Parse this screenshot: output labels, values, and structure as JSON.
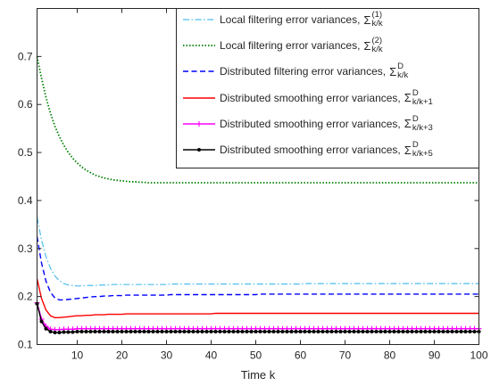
{
  "chart_data": {
    "type": "line",
    "xlabel": "Time k",
    "xlim": [
      1,
      100
    ],
    "ylim": [
      0.1,
      0.8
    ],
    "xticks": [
      10,
      20,
      30,
      40,
      50,
      60,
      70,
      80,
      90,
      100
    ],
    "yticks": [
      0.1,
      0.2,
      0.3,
      0.4,
      0.5,
      0.6,
      0.7
    ],
    "grid": false,
    "legend_position": "top-right",
    "x": [
      1,
      2,
      3,
      4,
      5,
      6,
      7,
      8,
      9,
      10,
      11,
      12,
      13,
      14,
      15,
      16,
      17,
      18,
      19,
      20,
      21,
      22,
      23,
      24,
      25,
      26,
      27,
      28,
      29,
      30,
      31,
      32,
      33,
      34,
      35,
      36,
      37,
      38,
      39,
      40,
      41,
      42,
      43,
      44,
      45,
      46,
      47,
      48,
      49,
      50,
      51,
      52,
      53,
      54,
      55,
      56,
      57,
      58,
      59,
      60,
      61,
      62,
      63,
      64,
      65,
      66,
      67,
      68,
      69,
      70,
      71,
      72,
      73,
      74,
      75,
      76,
      77,
      78,
      79,
      80,
      81,
      82,
      83,
      84,
      85,
      86,
      87,
      88,
      89,
      90,
      91,
      92,
      93,
      94,
      95,
      96,
      97,
      98,
      99,
      100
    ],
    "series": [
      {
        "name": "Local filtering error variances,",
        "symbol": "Σ",
        "sup": "(1)",
        "sub": "k/k",
        "color": "#4DBEEE",
        "line_style": "dash-dot",
        "marker": "none",
        "values": [
          0.365,
          0.318,
          0.283,
          0.259,
          0.243,
          0.233,
          0.227,
          0.224,
          0.223,
          0.222,
          0.222,
          0.223,
          0.223,
          0.223,
          0.224,
          0.224,
          0.224,
          0.225,
          0.225,
          0.225,
          0.225,
          0.225,
          0.225,
          0.225,
          0.225,
          0.225,
          0.225,
          0.225,
          0.225,
          0.225,
          0.226,
          0.226,
          0.226,
          0.226,
          0.226,
          0.226,
          0.226,
          0.226,
          0.226,
          0.226,
          0.226,
          0.226,
          0.226,
          0.226,
          0.226,
          0.226,
          0.226,
          0.226,
          0.226,
          0.226,
          0.226,
          0.226,
          0.226,
          0.226,
          0.226,
          0.226,
          0.226,
          0.226,
          0.226,
          0.226,
          0.227,
          0.227,
          0.227,
          0.227,
          0.227,
          0.227,
          0.227,
          0.227,
          0.227,
          0.227,
          0.227,
          0.227,
          0.227,
          0.227,
          0.227,
          0.227,
          0.227,
          0.227,
          0.227,
          0.227,
          0.227,
          0.227,
          0.227,
          0.227,
          0.227,
          0.227,
          0.227,
          0.227,
          0.227,
          0.227,
          0.227,
          0.227,
          0.227,
          0.227,
          0.227,
          0.227,
          0.227,
          0.227,
          0.227,
          0.227
        ]
      },
      {
        "name": "Local filtering error variances,",
        "symbol": "Σ",
        "sup": "(2)",
        "sub": "k/k",
        "color": "#008000",
        "line_style": "dotted",
        "marker": "none",
        "values": [
          0.7,
          0.655,
          0.615,
          0.582,
          0.555,
          0.533,
          0.515,
          0.5,
          0.488,
          0.478,
          0.47,
          0.463,
          0.458,
          0.453,
          0.45,
          0.447,
          0.445,
          0.443,
          0.442,
          0.441,
          0.44,
          0.439,
          0.439,
          0.438,
          0.438,
          0.437,
          0.437,
          0.437,
          0.437,
          0.437,
          0.437,
          0.437,
          0.437,
          0.437,
          0.437,
          0.437,
          0.437,
          0.437,
          0.437,
          0.437,
          0.437,
          0.437,
          0.437,
          0.437,
          0.437,
          0.437,
          0.437,
          0.437,
          0.437,
          0.437,
          0.437,
          0.437,
          0.437,
          0.437,
          0.437,
          0.437,
          0.437,
          0.437,
          0.437,
          0.437,
          0.437,
          0.437,
          0.437,
          0.437,
          0.437,
          0.437,
          0.437,
          0.437,
          0.437,
          0.437,
          0.437,
          0.437,
          0.437,
          0.437,
          0.437,
          0.437,
          0.437,
          0.437,
          0.437,
          0.437,
          0.437,
          0.437,
          0.437,
          0.437,
          0.437,
          0.437,
          0.437,
          0.437,
          0.437,
          0.437,
          0.437,
          0.437,
          0.437,
          0.437,
          0.437,
          0.437,
          0.437,
          0.437,
          0.437,
          0.437
        ]
      },
      {
        "name": "Distributed filtering error variances,",
        "symbol": "Σ",
        "sup": "D",
        "sub": "k/k",
        "color": "#0000FF",
        "line_style": "dashed",
        "marker": "none",
        "values": [
          0.325,
          0.27,
          0.232,
          0.209,
          0.197,
          0.193,
          0.193,
          0.194,
          0.195,
          0.196,
          0.197,
          0.198,
          0.199,
          0.2,
          0.2,
          0.201,
          0.201,
          0.202,
          0.202,
          0.202,
          0.203,
          0.203,
          0.203,
          0.203,
          0.203,
          0.203,
          0.203,
          0.203,
          0.203,
          0.203,
          0.204,
          0.204,
          0.204,
          0.204,
          0.204,
          0.204,
          0.204,
          0.204,
          0.204,
          0.204,
          0.204,
          0.204,
          0.204,
          0.204,
          0.204,
          0.204,
          0.204,
          0.204,
          0.204,
          0.204,
          0.205,
          0.205,
          0.205,
          0.205,
          0.205,
          0.205,
          0.205,
          0.205,
          0.205,
          0.205,
          0.205,
          0.205,
          0.205,
          0.205,
          0.205,
          0.205,
          0.205,
          0.205,
          0.205,
          0.205,
          0.205,
          0.205,
          0.205,
          0.205,
          0.205,
          0.205,
          0.205,
          0.205,
          0.205,
          0.205,
          0.205,
          0.205,
          0.205,
          0.205,
          0.205,
          0.205,
          0.205,
          0.205,
          0.205,
          0.205,
          0.205,
          0.205,
          0.205,
          0.205,
          0.205,
          0.205,
          0.205,
          0.205,
          0.205,
          0.205
        ]
      },
      {
        "name": "Distributed smoothing error variances,",
        "symbol": "Σ",
        "sup": "D",
        "sub": "k/k+1",
        "color": "#FF0000",
        "line_style": "solid",
        "marker": "none",
        "values": [
          0.237,
          0.196,
          0.172,
          0.16,
          0.156,
          0.156,
          0.157,
          0.158,
          0.159,
          0.16,
          0.16,
          0.161,
          0.161,
          0.162,
          0.162,
          0.162,
          0.163,
          0.163,
          0.163,
          0.163,
          0.164,
          0.164,
          0.164,
          0.164,
          0.164,
          0.164,
          0.164,
          0.164,
          0.164,
          0.164,
          0.164,
          0.164,
          0.164,
          0.164,
          0.164,
          0.164,
          0.164,
          0.164,
          0.164,
          0.164,
          0.165,
          0.165,
          0.165,
          0.165,
          0.165,
          0.165,
          0.165,
          0.165,
          0.165,
          0.165,
          0.165,
          0.165,
          0.165,
          0.165,
          0.165,
          0.165,
          0.165,
          0.165,
          0.165,
          0.165,
          0.165,
          0.165,
          0.165,
          0.165,
          0.165,
          0.165,
          0.165,
          0.165,
          0.165,
          0.165,
          0.165,
          0.165,
          0.165,
          0.165,
          0.165,
          0.165,
          0.165,
          0.165,
          0.165,
          0.165,
          0.165,
          0.165,
          0.165,
          0.165,
          0.165,
          0.165,
          0.165,
          0.165,
          0.165,
          0.165,
          0.165,
          0.165,
          0.165,
          0.165,
          0.165,
          0.165,
          0.165,
          0.165,
          0.165,
          0.165
        ]
      },
      {
        "name": "Distributed smoothing error variances,",
        "symbol": "Σ",
        "sup": "D",
        "sub": "k/k+3",
        "color": "#FF00FF",
        "line_style": "solid",
        "marker": "plus",
        "values": [
          0.187,
          0.153,
          0.138,
          0.132,
          0.131,
          0.131,
          0.132,
          0.132,
          0.132,
          0.133,
          0.133,
          0.133,
          0.133,
          0.133,
          0.133,
          0.133,
          0.133,
          0.133,
          0.133,
          0.133,
          0.133,
          0.133,
          0.133,
          0.133,
          0.133,
          0.133,
          0.133,
          0.133,
          0.133,
          0.133,
          0.133,
          0.133,
          0.133,
          0.133,
          0.133,
          0.133,
          0.133,
          0.133,
          0.133,
          0.133,
          0.133,
          0.133,
          0.133,
          0.133,
          0.133,
          0.133,
          0.133,
          0.133,
          0.133,
          0.133,
          0.133,
          0.133,
          0.133,
          0.133,
          0.133,
          0.133,
          0.133,
          0.133,
          0.133,
          0.133,
          0.133,
          0.133,
          0.133,
          0.133,
          0.133,
          0.133,
          0.133,
          0.133,
          0.133,
          0.133,
          0.133,
          0.133,
          0.133,
          0.133,
          0.133,
          0.133,
          0.133,
          0.133,
          0.133,
          0.133,
          0.133,
          0.133,
          0.133,
          0.133,
          0.133,
          0.133,
          0.133,
          0.133,
          0.133,
          0.133,
          0.133,
          0.133,
          0.133,
          0.133,
          0.133,
          0.133,
          0.133,
          0.133,
          0.133,
          0.133
        ]
      },
      {
        "name": "Distributed smoothing error variances,",
        "symbol": "Σ",
        "sup": "D",
        "sub": "k/k+5",
        "color": "#000000",
        "line_style": "solid",
        "marker": "dot",
        "values": [
          0.185,
          0.148,
          0.133,
          0.127,
          0.125,
          0.125,
          0.126,
          0.126,
          0.126,
          0.127,
          0.127,
          0.127,
          0.127,
          0.127,
          0.127,
          0.127,
          0.127,
          0.127,
          0.127,
          0.127,
          0.127,
          0.127,
          0.127,
          0.127,
          0.127,
          0.127,
          0.127,
          0.127,
          0.127,
          0.127,
          0.127,
          0.127,
          0.127,
          0.127,
          0.127,
          0.127,
          0.127,
          0.127,
          0.127,
          0.127,
          0.127,
          0.127,
          0.127,
          0.127,
          0.127,
          0.127,
          0.127,
          0.127,
          0.127,
          0.127,
          0.127,
          0.127,
          0.127,
          0.127,
          0.127,
          0.127,
          0.127,
          0.127,
          0.127,
          0.127,
          0.127,
          0.127,
          0.127,
          0.127,
          0.127,
          0.127,
          0.127,
          0.127,
          0.127,
          0.127,
          0.127,
          0.127,
          0.127,
          0.127,
          0.127,
          0.127,
          0.127,
          0.127,
          0.127,
          0.127,
          0.127,
          0.127,
          0.127,
          0.127,
          0.127,
          0.127,
          0.127,
          0.127,
          0.127,
          0.127,
          0.127,
          0.127,
          0.127,
          0.127,
          0.127,
          0.127,
          0.127,
          0.127,
          0.127,
          0.127
        ]
      }
    ]
  }
}
